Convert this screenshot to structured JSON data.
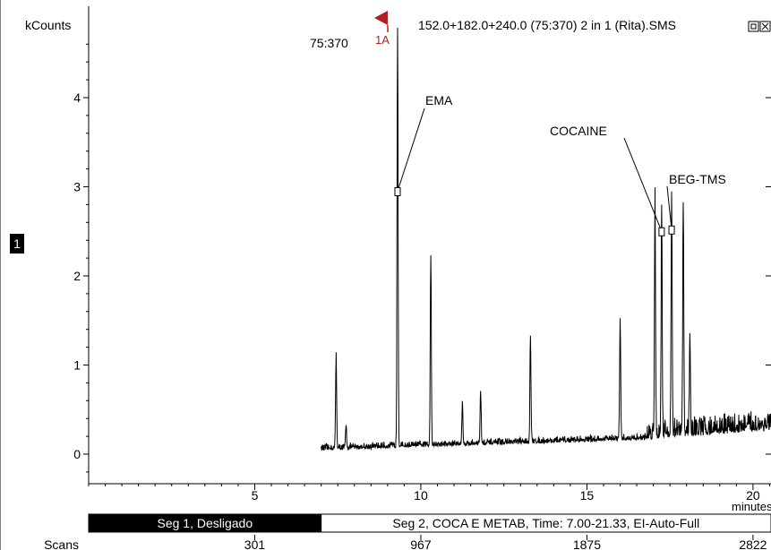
{
  "header": {
    "file_title": "152.0+182.0+240.0 (75:370) 2 in 1 (Rita).SMS",
    "peak_range": "75:370",
    "marker_label": "1A",
    "window_buttons": [
      "restore-icon",
      "close-icon"
    ]
  },
  "side_badge": "1",
  "colors": {
    "trace": "#000000",
    "marker": "#b22020",
    "segment_active_bg": "#000000",
    "segment_active_text": "#ffffff"
  },
  "segments": [
    {
      "label": "Seg 1, Desligado",
      "start": 0,
      "end": 7.0,
      "active": true
    },
    {
      "label": "Seg 2, COCA E METAB, Time:  7.00-21.33, EI-Auto-Full",
      "start": 7.0,
      "end": 21.33,
      "active": false
    }
  ],
  "scans": {
    "label": "Scans",
    "ticks": [
      {
        "time": 5,
        "value": "301"
      },
      {
        "time": 10,
        "value": "967"
      },
      {
        "time": 15,
        "value": "1875"
      },
      {
        "time": 20,
        "value": "2822"
      }
    ]
  },
  "chart_data": {
    "type": "line",
    "title": "152.0+182.0+240.0 (75:370) 2 in 1 (Rita).SMS",
    "xlabel": "minutes",
    "ylabel": "kCounts",
    "xlim": [
      0,
      21
    ],
    "ylim": [
      -0.3,
      4.9
    ],
    "x_ticks": [
      5,
      10,
      15,
      20
    ],
    "y_ticks": [
      0,
      1,
      2,
      3,
      4
    ],
    "grid": false,
    "trace_start": 7.0,
    "trace_end": 21.0,
    "peaks": [
      {
        "x": 7.45,
        "y": 1.05
      },
      {
        "x": 7.75,
        "y": 0.25
      },
      {
        "x": 9.3,
        "y": 4.7
      },
      {
        "x": 10.3,
        "y": 2.15
      },
      {
        "x": 11.25,
        "y": 0.45
      },
      {
        "x": 11.8,
        "y": 0.6
      },
      {
        "x": 13.3,
        "y": 1.2
      },
      {
        "x": 16.0,
        "y": 1.35
      },
      {
        "x": 17.05,
        "y": 2.72
      },
      {
        "x": 17.25,
        "y": 2.6
      },
      {
        "x": 17.55,
        "y": 2.75
      },
      {
        "x": 17.9,
        "y": 2.6
      },
      {
        "x": 18.1,
        "y": 1.0
      }
    ],
    "annotations": [
      {
        "label": "EMA",
        "peak_x": 9.3,
        "peak_y": 2.95
      },
      {
        "label": "COCAINE",
        "peak_x": 17.25,
        "peak_y": 2.5
      },
      {
        "label": "BEG-TMS",
        "peak_x": 17.55,
        "peak_y": 2.52
      }
    ]
  }
}
